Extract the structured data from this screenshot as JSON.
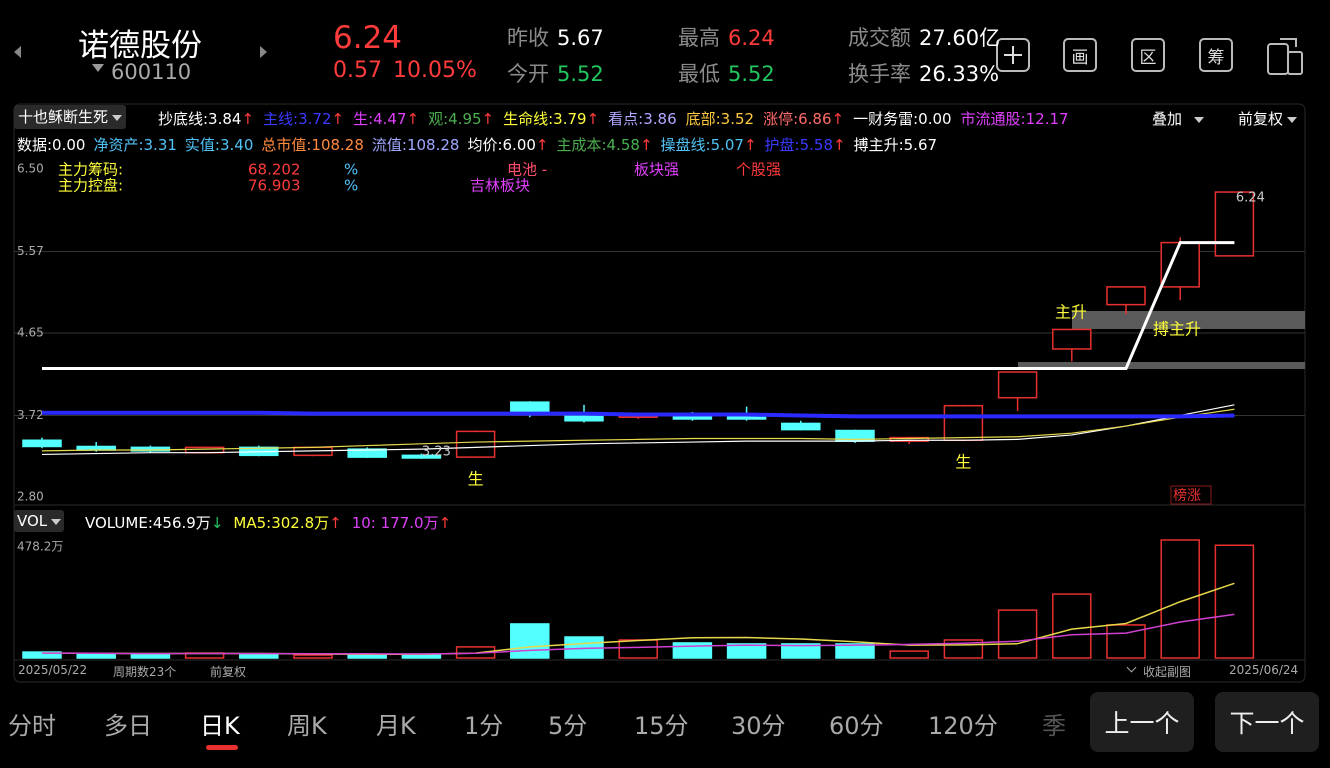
{
  "header": {
    "name": "诺德股份",
    "code": "600110",
    "price": "6.24",
    "change": "0.57",
    "change_pct": "10.05%",
    "stats": [
      {
        "label": "昨收",
        "value": "5.67",
        "color": "#ffffff"
      },
      {
        "label": "今开",
        "value": "5.52",
        "color": "#22c55e"
      },
      {
        "label": "最高",
        "value": "6.24",
        "color": "#ff3b3b"
      },
      {
        "label": "最低",
        "value": "5.52",
        "color": "#22c55e"
      },
      {
        "label": "成交额",
        "value": "27.60亿",
        "color": "#ffffff"
      },
      {
        "label": "换手率",
        "value": "26.33%",
        "color": "#ffffff"
      }
    ],
    "tools": [
      "画",
      "区",
      "筹"
    ]
  },
  "indicator_name": "十也稣断生死",
  "indicators_row1": [
    {
      "text": "抄底线:3.84",
      "arrow": "↑",
      "color": "#ffffff",
      "arrow_color": "#ff3b3b"
    },
    {
      "text": "主线:3.72",
      "arrow": "↑",
      "color": "#3a3aff",
      "arrow_color": "#ff3b3b"
    },
    {
      "text": "生:4.47",
      "arrow": "↑",
      "color": "#e040fb",
      "arrow_color": "#ff3b3b"
    },
    {
      "text": "观:4.95",
      "arrow": "↑",
      "color": "#4caf50",
      "arrow_color": "#ff3b3b"
    },
    {
      "text": "生命线:3.79",
      "arrow": "↑",
      "color": "#ffff3b",
      "arrow_color": "#ff3b3b"
    },
    {
      "text": "看点:3.86",
      "color": "#b0a8ff"
    },
    {
      "text": "底部:3.52",
      "color": "#ffc940"
    },
    {
      "text": "涨停:6.86",
      "arrow": "↑",
      "color": "#ff6b6b",
      "arrow_color": "#ff3b3b"
    },
    {
      "text": "一财务雷:0.00",
      "color": "#ffffff"
    },
    {
      "text": "市流通股:12.17",
      "color": "#e040fb"
    }
  ],
  "indicators_row2": [
    {
      "text": "数据:0.00",
      "color": "#ffffff"
    },
    {
      "text": "净资产:3.31",
      "color": "#4fc3f7"
    },
    {
      "text": "实值:3.40",
      "color": "#4fc3f7"
    },
    {
      "text": "总市值:108.28",
      "color": "#ff8a3d"
    },
    {
      "text": "流值:108.28",
      "color": "#a0a8ff"
    },
    {
      "text": "均价:6.00",
      "arrow": "↑",
      "color": "#ffffff",
      "arrow_color": "#ff3b3b"
    },
    {
      "text": "主成本:4.58",
      "arrow": "↑",
      "color": "#4caf50",
      "arrow_color": "#ff3b3b"
    },
    {
      "text": "操盘线:5.07",
      "arrow": "↑",
      "color": "#4fc3f7",
      "arrow_color": "#ff3b3b"
    },
    {
      "text": "护盘:5.58",
      "arrow": "↑",
      "color": "#3a3aff",
      "arrow_color": "#ff3b3b"
    },
    {
      "text": "搏主升:5.67",
      "color": "#ffffff"
    }
  ],
  "overlay": "叠加",
  "adjust": "前复权",
  "notes": {
    "chip_label": "主力筹码:",
    "chip_value": "68.202",
    "chip_unit": "%",
    "control_label": "主力控盘:",
    "control_value": "76.903",
    "control_unit": "%",
    "sector": "电池 -",
    "region": "吉林板块",
    "sector_strong": "板块强",
    "stock_strong": "个股强",
    "rise": "主升",
    "boost": "搏主升",
    "rank": "榜涨"
  },
  "volume_name": "VOL",
  "volume_row": [
    {
      "text": "VOLUME:456.9万",
      "arrow": "↓",
      "color": "#ffffff",
      "arrow_color": "#22c55e"
    },
    {
      "text": "MA5:302.8万",
      "arrow": "↑",
      "color": "#ffff3b",
      "arrow_color": "#ff3b3b"
    },
    {
      "text": "10: 177.0万",
      "arrow": "↑",
      "color": "#e040fb",
      "arrow_color": "#ff3b3b"
    }
  ],
  "chart_data": [
    {
      "type": "candlestick",
      "up_color": "#e8312f",
      "down_color": "#54ffff",
      "grid": true,
      "categories": [
        "2025/05/22",
        null,
        null,
        null,
        null,
        null,
        null,
        null,
        null,
        null,
        null,
        null,
        null,
        null,
        null,
        null,
        null,
        null,
        null,
        null,
        null,
        null,
        "2025/06/24"
      ],
      "open": [
        3.44,
        3.37,
        3.36,
        3.3,
        3.36,
        3.27,
        3.34,
        3.27,
        3.25,
        3.87,
        3.71,
        3.7,
        3.71,
        3.7,
        3.63,
        3.55,
        3.43,
        3.44,
        3.92,
        4.47,
        4.97,
        5.17,
        5.52
      ],
      "high": [
        3.47,
        3.42,
        3.38,
        3.37,
        3.38,
        3.37,
        3.36,
        3.29,
        3.55,
        3.88,
        3.84,
        3.74,
        3.76,
        3.82,
        3.66,
        3.56,
        3.48,
        3.84,
        4.21,
        4.69,
        5.17,
        5.73,
        6.24
      ],
      "low": [
        3.35,
        3.31,
        3.3,
        3.29,
        3.26,
        3.26,
        3.24,
        3.23,
        3.24,
        3.7,
        3.64,
        3.68,
        3.66,
        3.66,
        3.55,
        3.41,
        3.4,
        3.43,
        3.77,
        4.33,
        4.86,
        5.02,
        5.52
      ],
      "close": [
        3.37,
        3.33,
        3.32,
        3.36,
        3.27,
        3.36,
        3.25,
        3.24,
        3.54,
        3.73,
        3.66,
        3.72,
        3.68,
        3.68,
        3.56,
        3.43,
        3.47,
        3.83,
        4.21,
        4.69,
        5.17,
        5.67,
        6.24
      ],
      "ylim": [
        2.8,
        6.5
      ],
      "yticks": [
        {
          "value": 6.5,
          "label": "6.50"
        },
        5.57,
        4.65,
        3.72,
        {
          "value": 2.8,
          "label": "2.80"
        }
      ],
      "high_label": "6.24",
      "low_label": "3.23",
      "signal": "生",
      "signal_flags": [
        0,
        0,
        0,
        0,
        0,
        0,
        0,
        0,
        1,
        0,
        0,
        0,
        0,
        0,
        0,
        0,
        0,
        1,
        0,
        0,
        0,
        0,
        0
      ],
      "lines": [
        {
          "color": "#ffffff",
          "width": 1.2,
          "values": [
            3.28,
            3.29,
            3.3,
            3.3,
            3.31,
            3.32,
            3.33,
            3.34,
            3.36,
            3.38,
            3.4,
            3.41,
            3.42,
            3.43,
            3.43,
            3.43,
            3.44,
            3.44,
            3.45,
            3.5,
            3.6,
            3.72,
            3.84
          ]
        },
        {
          "color": "#e6d84a",
          "width": 1.2,
          "values": [
            3.32,
            3.33,
            3.33,
            3.34,
            3.35,
            3.36,
            3.38,
            3.4,
            3.42,
            3.43,
            3.44,
            3.45,
            3.46,
            3.46,
            3.46,
            3.45,
            3.46,
            3.47,
            3.48,
            3.52,
            3.6,
            3.7,
            3.79
          ]
        },
        {
          "color": "#2a2aff",
          "width": 4,
          "values": [
            3.75,
            3.75,
            3.75,
            3.75,
            3.75,
            3.74,
            3.74,
            3.74,
            3.74,
            3.74,
            3.74,
            3.73,
            3.73,
            3.73,
            3.72,
            3.71,
            3.71,
            3.71,
            3.71,
            3.71,
            3.71,
            3.71,
            3.72
          ]
        },
        {
          "color": "#ffffff",
          "width": 3,
          "values": [
            4.25,
            4.25,
            4.25,
            4.25,
            4.25,
            4.25,
            4.25,
            4.25,
            4.25,
            4.25,
            4.25,
            4.25,
            4.25,
            4.25,
            4.25,
            4.25,
            4.25,
            4.25,
            4.25,
            4.25,
            4.25,
            5.67,
            5.67
          ]
        }
      ]
    },
    {
      "type": "bar",
      "ylim": [
        0,
        478.2
      ],
      "yticks": [
        {
          "value": 478.2,
          "label": "478.2万"
        }
      ],
      "values": [
        24,
        16,
        16,
        20,
        16,
        12,
        12,
        16,
        45,
        138,
        85,
        73,
        61,
        57,
        57,
        57,
        28,
        73,
        194,
        259,
        134,
        478.2,
        456.9
      ],
      "lines": [
        {
          "color": "#e6d84a",
          "width": 1.5,
          "values": [
            20,
            19,
            18,
            18,
            18,
            16,
            15,
            15,
            20,
            45,
            59,
            71,
            82,
            83,
            77,
            66,
            52,
            53,
            58,
            117,
            140,
            228,
            302.8
          ]
        },
        {
          "color": "#d040d0",
          "width": 1.5,
          "values": [
            20,
            19,
            18,
            18,
            18,
            17,
            17,
            16,
            19,
            31,
            39,
            43,
            48,
            52,
            50,
            52,
            55,
            60,
            68,
            94,
            101,
            146,
            177.0
          ]
        }
      ]
    }
  ],
  "footer": {
    "start": "2025/05/22",
    "periods": "周期数23个",
    "adjust": "前复权",
    "collapse": "收起副图",
    "end": "2025/06/24"
  },
  "tabs": [
    "分时",
    "多日",
    "日K",
    "周K",
    "月K",
    "1分",
    "5分",
    "15分",
    "30分",
    "60分",
    "120分",
    "季"
  ],
  "selected_tab": "日K",
  "buttons": [
    "上一个",
    "下一个"
  ]
}
